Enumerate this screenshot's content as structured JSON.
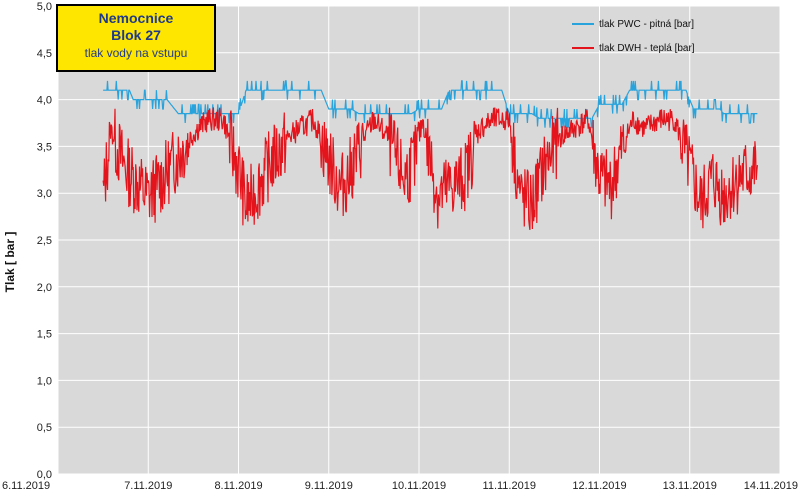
{
  "chart_data": {
    "type": "line",
    "title": [
      "Nemocnice",
      "Blok 27",
      "tlak vody  na vstupu"
    ],
    "ylabel": "Tlak [ bar ]",
    "xlabel": "",
    "ylim": [
      0,
      5
    ],
    "y_ticks": [
      "0,0",
      "0,5",
      "1,0",
      "1,5",
      "2,0",
      "2,5",
      "3,0",
      "3,5",
      "4,0",
      "4,5",
      "5,0"
    ],
    "x_ticks": [
      "6.11.2019",
      "7.11.2019",
      "8.11.2019",
      "9.11.2019",
      "10.11.2019",
      "11.11.2019",
      "12.11.2019",
      "13.11.2019",
      "14.11.2019"
    ],
    "grid": true,
    "legend_position": "top-right",
    "colors": {
      "pwc": "#29a3dc",
      "dwh": "#e4141c",
      "plot_bg": "#d9d9d9",
      "grid": "#ffffff"
    },
    "series": [
      {
        "name": "tlak PWC - pitná [bar]",
        "color": "#29a3dc",
        "x": [
          "6.11.2019 12:00",
          "6.11.2019 19:00",
          "6.11.2019 20:00",
          "7.11.2019 05:00",
          "7.11.2019 08:00",
          "8.11.2019 00:00",
          "8.11.2019 02:00",
          "8.11.2019 22:00",
          "9.11.2019 00:00",
          "9.11.2019 06:00",
          "9.11.2019 08:00",
          "9.11.2019 22:00",
          "10.11.2019 00:00",
          "10.11.2019 06:00",
          "10.11.2019 08:00",
          "10.11.2019 22:00",
          "11.11.2019 00:00",
          "11.11.2019 06:00",
          "11.11.2019 08:00",
          "11.11.2019 22:00",
          "12.11.2019 00:00",
          "12.11.2019 06:00",
          "12.11.2019 08:00",
          "12.11.2019 23:00",
          "13.11.2019 01:00",
          "13.11.2019 08:00",
          "13.11.2019 09:00",
          "13.11.2019 18:00"
        ],
        "values": [
          4.1,
          4.1,
          4.0,
          4.0,
          3.85,
          3.85,
          4.1,
          4.1,
          3.9,
          3.9,
          3.85,
          3.85,
          3.9,
          3.9,
          4.1,
          4.1,
          3.85,
          3.85,
          3.8,
          3.8,
          3.95,
          3.95,
          4.1,
          4.1,
          3.9,
          3.9,
          3.85,
          3.85
        ]
      },
      {
        "name": "tlak DWH - teplá [bar]",
        "color": "#e4141c",
        "x": [
          "6.11.2019 12:00",
          "6.11.2019 14:00",
          "6.11.2019 18:00",
          "7.11.2019 00:00",
          "7.11.2019 04:00",
          "7.11.2019 09:00",
          "7.11.2019 13:00",
          "7.11.2019 16:00",
          "7.11.2019 20:00",
          "8.11.2019 00:00",
          "8.11.2019 02:00",
          "8.11.2019 05:00",
          "8.11.2019 09:00",
          "8.11.2019 13:00",
          "8.11.2019 16:00",
          "8.11.2019 20:00",
          "9.11.2019 00:00",
          "9.11.2019 03:00",
          "9.11.2019 05:00",
          "9.11.2019 08:00",
          "9.11.2019 12:00",
          "9.11.2019 16:00",
          "9.11.2019 20:00",
          "9.11.2019 23:00",
          "10.11.2019 01:00",
          "10.11.2019 05:00",
          "10.11.2019 08:00",
          "10.11.2019 12:00",
          "10.11.2019 16:00",
          "10.11.2019 20:00",
          "11.11.2019 00:00",
          "11.11.2019 03:00",
          "11.11.2019 06:00",
          "11.11.2019 09:00",
          "11.11.2019 13:00",
          "11.11.2019 17:00",
          "11.11.2019 21:00",
          "12.11.2019 00:00",
          "12.11.2019 03:00",
          "12.11.2019 06:00",
          "12.11.2019 09:00",
          "12.11.2019 12:00",
          "12.11.2019 16:00",
          "12.11.2019 20:00",
          "13.11.2019 00:00",
          "13.11.2019 03:00",
          "13.11.2019 06:00",
          "13.11.2019 09:00",
          "13.11.2019 13:00",
          "13.11.2019 18:00"
        ],
        "values": [
          3.0,
          3.7,
          3.3,
          3.0,
          3.2,
          3.5,
          3.7,
          3.8,
          3.8,
          3.3,
          2.9,
          3.1,
          3.4,
          3.6,
          3.7,
          3.8,
          3.4,
          3.1,
          3.2,
          3.5,
          3.8,
          3.6,
          3.2,
          3.4,
          3.8,
          3.0,
          3.1,
          3.2,
          3.7,
          3.8,
          3.8,
          3.0,
          2.9,
          3.3,
          3.6,
          3.7,
          3.8,
          3.2,
          3.1,
          3.5,
          3.8,
          3.7,
          3.8,
          3.8,
          3.3,
          2.9,
          3.2,
          3.0,
          3.2,
          3.3
        ]
      }
    ]
  }
}
